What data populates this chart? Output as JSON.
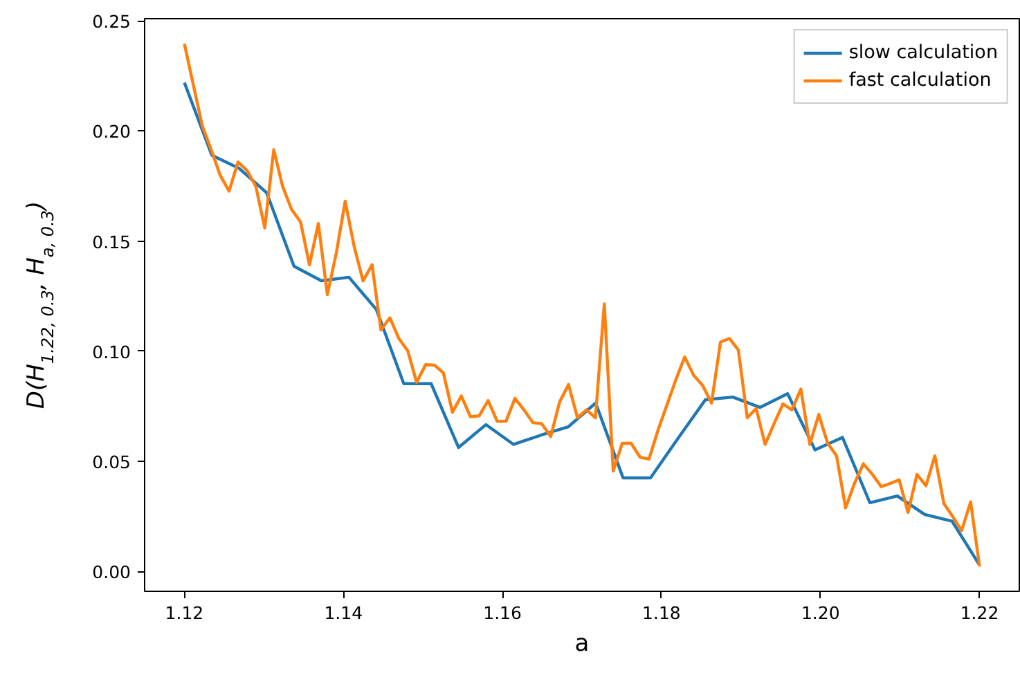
{
  "chart_data": {
    "type": "line",
    "xlabel": "a",
    "ylabel": "D(H$_{1.22, 0.3}$, H$_{a, 0.3}$)",
    "xlim": [
      1.115,
      1.225
    ],
    "ylim": [
      -0.009,
      0.251
    ],
    "xticks": [
      1.12,
      1.14,
      1.16,
      1.18,
      {
        "value": 1.2,
        "label": "1.20"
      },
      1.22
    ],
    "yticks": [
      {
        "value": 0,
        "label": "0.00"
      },
      0.05,
      {
        "value": 0.1,
        "label": "0.10"
      },
      0.15,
      {
        "value": 0.2,
        "label": "0.20"
      },
      0.25
    ],
    "grid": false,
    "legend": "top right",
    "line_style": "solid",
    "marker": "none",
    "series": [
      {
        "name": "slow calculation",
        "color": "#1f77b4",
        "x": [
          1.12,
          1.12345,
          1.1269,
          1.13034,
          1.13379,
          1.13724,
          1.14069,
          1.14414,
          1.14759,
          1.15103,
          1.15448,
          1.15793,
          1.16138,
          1.16483,
          1.16828,
          1.17172,
          1.17517,
          1.17862,
          1.18207,
          1.18552,
          1.18897,
          1.19241,
          1.19586,
          1.19931,
          1.20276,
          1.20621,
          1.20966,
          1.2131,
          1.21655,
          1.22
        ],
        "values": [
          0.222,
          0.189,
          0.183,
          0.172,
          0.1386,
          0.132,
          0.1336,
          0.119,
          0.0853,
          0.0853,
          0.0563,
          0.0667,
          0.0577,
          0.0619,
          0.0657,
          0.0765,
          0.0425,
          0.0425,
          0.0604,
          0.078,
          0.0792,
          0.0745,
          0.0807,
          0.0552,
          0.0609,
          0.0312,
          0.0343,
          0.0259,
          0.0228,
          0.0029
        ]
      },
      {
        "name": "fast calculation",
        "color": "#ff7f0e",
        "x": [
          1.12,
          1.12112,
          1.12225,
          1.12337,
          1.12449,
          1.12562,
          1.12674,
          1.12787,
          1.12899,
          1.13011,
          1.13124,
          1.13236,
          1.13348,
          1.13461,
          1.13573,
          1.13685,
          1.13798,
          1.1391,
          1.14022,
          1.14135,
          1.14247,
          1.1436,
          1.14472,
          1.14584,
          1.14697,
          1.14809,
          1.14921,
          1.15034,
          1.15146,
          1.15258,
          1.15371,
          1.15483,
          1.15596,
          1.15708,
          1.1582,
          1.15933,
          1.16045,
          1.16157,
          1.1627,
          1.16382,
          1.16494,
          1.16607,
          1.16719,
          1.16831,
          1.16944,
          1.17056,
          1.17169,
          1.17281,
          1.17393,
          1.17506,
          1.17618,
          1.1773,
          1.17843,
          1.17955,
          1.18067,
          1.1818,
          1.18292,
          1.18404,
          1.18517,
          1.18629,
          1.18742,
          1.18854,
          1.18966,
          1.19079,
          1.19191,
          1.19303,
          1.19416,
          1.19528,
          1.1964,
          1.19753,
          1.19865,
          1.19978,
          1.2009,
          1.20202,
          1.20315,
          1.20427,
          1.20539,
          1.20652,
          1.20764,
          1.20876,
          1.20989,
          1.21101,
          1.21213,
          1.21326,
          1.21438,
          1.21551,
          1.21663,
          1.21775,
          1.21888,
          1.22
        ],
        "values": [
          0.2396,
          0.221,
          0.2024,
          0.1915,
          0.18,
          0.1727,
          0.1859,
          0.1821,
          0.1748,
          0.156,
          0.1915,
          0.1748,
          0.1644,
          0.1587,
          0.1393,
          0.158,
          0.1257,
          0.1445,
          0.1681,
          0.1476,
          0.1319,
          0.1393,
          0.1096,
          0.1152,
          0.1058,
          0.1002,
          0.0859,
          0.0939,
          0.0937,
          0.0901,
          0.0723,
          0.0797,
          0.0703,
          0.0707,
          0.0776,
          0.0682,
          0.0682,
          0.0786,
          0.0734,
          0.0676,
          0.0671,
          0.0613,
          0.077,
          0.0849,
          0.0698,
          0.0734,
          0.0698,
          0.1215,
          0.0456,
          0.0582,
          0.0582,
          0.0519,
          0.051,
          0.064,
          0.0755,
          0.087,
          0.0974,
          0.0891,
          0.0845,
          0.0765,
          0.1041,
          0.1058,
          0.1006,
          0.0698,
          0.074,
          0.0577,
          0.0671,
          0.0761,
          0.0734,
          0.0828,
          0.0577,
          0.0713,
          0.0582,
          0.0525,
          0.0289,
          0.04,
          0.0489,
          0.0441,
          0.0385,
          0.04,
          0.0416,
          0.0268,
          0.0441,
          0.0389,
          0.0525,
          0.0309,
          0.0249,
          0.0186,
          0.0316,
          0.0023
        ]
      }
    ]
  }
}
